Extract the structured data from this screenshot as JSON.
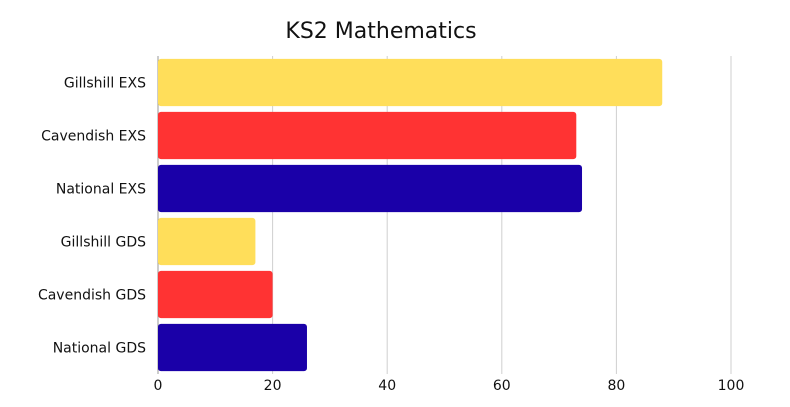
{
  "chart_data": {
    "type": "bar",
    "orientation": "horizontal",
    "title": "KS2 Mathematics",
    "xlabel": "",
    "ylabel": "",
    "categories": [
      "Gillshill EXS",
      "Cavendish EXS",
      "National EXS",
      "Gillshill GDS",
      "Cavendish GDS",
      "National GDS"
    ],
    "values": [
      88,
      73,
      74,
      17,
      20,
      26
    ],
    "bar_colors": [
      "#ffde5a",
      "#ff3333",
      "#1a00a8",
      "#ffde5a",
      "#ff3333",
      "#1a00a8"
    ],
    "xlim": [
      0,
      100
    ],
    "x_ticks": [
      0,
      20,
      40,
      60,
      80,
      100
    ],
    "x_tick_labels": [
      "0",
      "20",
      "40",
      "60",
      "80",
      "100"
    ],
    "grid": true,
    "legend": "none"
  }
}
